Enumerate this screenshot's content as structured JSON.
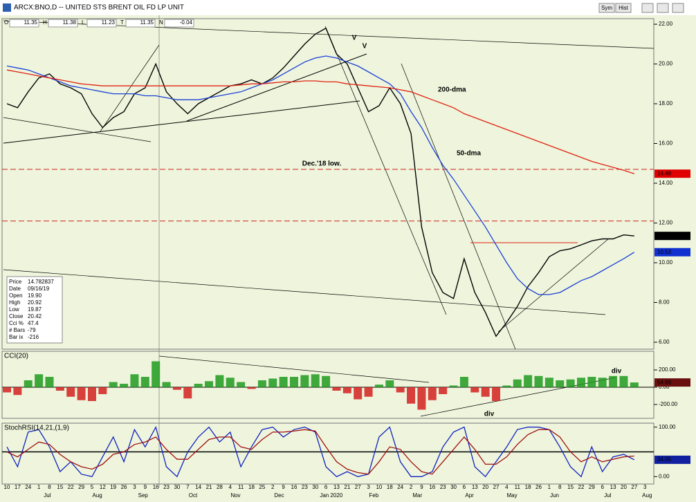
{
  "window_title": "ARCX:BNO,D -- UNITED STS BRENT OIL FD LP UNIT",
  "toolbar": {
    "buttons": [
      "Sym",
      "Hist"
    ]
  },
  "quote": [
    {
      "label": "O",
      "value": "11.35"
    },
    {
      "label": "H",
      "value": "11.38"
    },
    {
      "label": "L",
      "value": "11.23"
    },
    {
      "label": "T",
      "value": "11.35"
    },
    {
      "label": "N",
      "value": "-0.04"
    }
  ],
  "info_box": [
    [
      "Price",
      "14.782837"
    ],
    [
      "Date",
      "09/16/19"
    ],
    [
      "Open",
      "19.90"
    ],
    [
      "High",
      "20.92"
    ],
    [
      "Low",
      "19.87"
    ],
    [
      "Close",
      "20.42"
    ],
    [
      "Cci %",
      "47.4"
    ],
    [
      "# Bars",
      "-79"
    ],
    [
      "Bar ix",
      "-216"
    ]
  ],
  "chart_data": [
    {
      "type": "line",
      "categories": [
        "10",
        "17",
        "24",
        "1",
        "8",
        "15",
        "22",
        "29",
        "5",
        "12",
        "19",
        "26",
        "3",
        "9",
        "16",
        "23",
        "30",
        "7",
        "14",
        "21",
        "28",
        "4",
        "11",
        "18",
        "25",
        "2",
        "9",
        "16",
        "23",
        "30",
        "6",
        "13",
        "21",
        "27",
        "3",
        "10",
        "18",
        "24",
        "2",
        "9",
        "16",
        "23",
        "30",
        "6",
        "13",
        "20",
        "27",
        "4",
        "11",
        "18",
        "26",
        "1",
        "8",
        "15",
        "22",
        "29",
        "6",
        "13",
        "20",
        "27",
        "3"
      ],
      "months": [
        "Jul",
        "Aug",
        "Sep",
        "Oct",
        "Nov",
        "Dec",
        "Jan 2020",
        "Feb",
        "Mar",
        "Apr",
        "May",
        "Jun",
        "Jul",
        "Aug"
      ],
      "ylim": [
        5.65,
        22.28
      ],
      "yticks": [
        {
          "value": 6,
          "label": "6.00"
        },
        {
          "value": 8,
          "label": "8.00"
        },
        {
          "value": 10,
          "label": "10.00"
        },
        {
          "value": 12,
          "label": "12.00"
        },
        {
          "value": 14,
          "label": "14.00"
        },
        {
          "value": 16,
          "label": "16.00"
        },
        {
          "value": 18,
          "label": "18.00"
        },
        {
          "value": 20,
          "label": "20.00"
        },
        {
          "value": 22,
          "label": "22.00"
        }
      ],
      "series": [
        {
          "color": "#000000",
          "values": [
            18.0,
            17.8,
            18.6,
            19.3,
            19.5,
            19.0,
            18.8,
            18.5,
            17.5,
            16.8,
            17.3,
            17.6,
            18.5,
            18.8,
            20.0,
            18.6,
            18.0,
            17.5,
            18.0,
            18.3,
            18.6,
            18.9,
            19.0,
            19.2,
            19.0,
            19.3,
            19.8,
            20.4,
            21.0,
            21.5,
            21.8,
            20.5,
            20.0,
            18.8,
            17.6,
            17.9,
            18.8,
            18.0,
            16.5,
            11.8,
            9.5,
            8.5,
            8.2,
            10.2,
            8.5,
            7.5,
            6.3,
            7.0,
            7.8,
            8.8,
            9.5,
            10.3,
            10.6,
            10.7,
            10.9,
            11.1,
            11.2,
            11.2,
            11.4,
            11.35,
            null
          ]
        },
        {
          "name": "50-dma",
          "color": "#1a3fd8",
          "values": [
            19.9,
            19.8,
            19.7,
            19.5,
            19.3,
            19.1,
            18.9,
            18.8,
            18.7,
            18.6,
            18.5,
            18.5,
            18.5,
            18.4,
            18.4,
            18.3,
            18.2,
            18.2,
            18.2,
            18.3,
            18.4,
            18.5,
            18.6,
            18.8,
            19.0,
            19.2,
            19.5,
            19.8,
            20.1,
            20.3,
            20.4,
            20.3,
            20.1,
            19.9,
            19.6,
            19.3,
            19.0,
            18.5,
            17.6,
            16.8,
            15.8,
            14.9,
            14.2,
            13.4,
            12.6,
            11.8,
            10.9,
            10.0,
            9.2,
            8.7,
            8.4,
            8.4,
            8.5,
            8.8,
            9.1,
            9.3,
            9.6,
            9.9,
            10.2,
            10.53,
            null
          ]
        },
        {
          "name": "200-dma",
          "color": "#e02010",
          "values": [
            19.7,
            19.6,
            19.5,
            19.4,
            19.3,
            19.2,
            19.1,
            19.0,
            18.95,
            18.9,
            18.9,
            18.9,
            18.9,
            18.9,
            18.9,
            18.9,
            18.9,
            18.9,
            18.9,
            18.9,
            18.9,
            18.9,
            18.95,
            19.0,
            19.0,
            19.05,
            19.1,
            19.1,
            19.15,
            19.15,
            19.1,
            19.1,
            19.0,
            18.95,
            18.9,
            18.85,
            18.8,
            18.7,
            18.6,
            18.4,
            18.2,
            18.0,
            17.8,
            17.5,
            17.3,
            17.1,
            16.9,
            16.7,
            16.5,
            16.3,
            16.1,
            15.9,
            15.7,
            15.5,
            15.3,
            15.1,
            14.95,
            14.8,
            14.65,
            14.48,
            null
          ]
        }
      ],
      "hlines": [
        14.7,
        12.1
      ],
      "last_values": [
        {
          "value": 14.48,
          "color": "#e00000"
        },
        {
          "value": 11.35,
          "color": "#000000"
        },
        {
          "value": 10.53,
          "color": "#1030d0"
        }
      ],
      "annotations": [
        {
          "text": "V",
          "color": "#1a3fd8"
        },
        {
          "text": "V",
          "color": "#e02010"
        },
        {
          "text": "Dec.'18 low.",
          "color": "#d01010"
        }
      ]
    },
    {
      "type": "bar",
      "title": "CCI(20)",
      "ylim": [
        -360,
        416
      ],
      "yticks": [
        {
          "value": 200,
          "label": "200.00"
        },
        {
          "value": 0,
          "label": "0.00"
        },
        {
          "value": -200,
          "label": "-200.00"
        }
      ],
      "values": [
        -60,
        -90,
        80,
        150,
        120,
        -40,
        -110,
        -150,
        -160,
        -80,
        60,
        40,
        150,
        120,
        300,
        60,
        -30,
        -130,
        40,
        70,
        140,
        110,
        60,
        -20,
        80,
        100,
        120,
        120,
        140,
        150,
        130,
        -40,
        -70,
        -140,
        -110,
        30,
        80,
        -60,
        -190,
        -260,
        -150,
        -80,
        20,
        120,
        -60,
        -110,
        -160,
        20,
        90,
        140,
        130,
        110,
        80,
        90,
        110,
        120,
        110,
        130,
        130,
        55,
        null
      ],
      "colors": {
        "up": "#1f9a1f",
        "down": "#d42020"
      },
      "last_value": 54.68,
      "annotations": [
        {
          "text": "div",
          "color": "#d01010"
        },
        {
          "text": "div",
          "color": "#108010"
        }
      ]
    },
    {
      "type": "line",
      "title": "StochRSI(14,21,(1,9)",
      "ylim": [
        -15,
        108
      ],
      "yticks": [
        {
          "value": 100,
          "label": "100.00"
        },
        {
          "value": 0,
          "label": "0.00"
        }
      ],
      "hline": 50,
      "series": [
        {
          "color": "#1020c0",
          "values": [
            60,
            20,
            90,
            95,
            60,
            10,
            30,
            5,
            0,
            40,
            80,
            30,
            95,
            60,
            100,
            20,
            0,
            50,
            80,
            100,
            70,
            90,
            20,
            60,
            95,
            100,
            80,
            95,
            100,
            90,
            20,
            0,
            10,
            0,
            5,
            80,
            100,
            30,
            0,
            0,
            10,
            60,
            90,
            100,
            20,
            0,
            30,
            60,
            95,
            100,
            100,
            95,
            60,
            20,
            0,
            60,
            10,
            40,
            45,
            34.05,
            null
          ]
        },
        {
          "color": "#a01010",
          "values": [
            50,
            40,
            55,
            70,
            65,
            45,
            30,
            20,
            15,
            25,
            45,
            50,
            65,
            70,
            80,
            55,
            35,
            35,
            55,
            75,
            80,
            80,
            60,
            55,
            75,
            90,
            90,
            92,
            95,
            92,
            60,
            30,
            15,
            8,
            5,
            30,
            60,
            55,
            30,
            10,
            5,
            30,
            55,
            80,
            55,
            25,
            25,
            40,
            65,
            85,
            95,
            95,
            80,
            50,
            30,
            40,
            30,
            35,
            40,
            41.57,
            null
          ]
        }
      ],
      "last_values": [
        {
          "value": 34.05,
          "color": "#1020a0"
        }
      ]
    }
  ]
}
